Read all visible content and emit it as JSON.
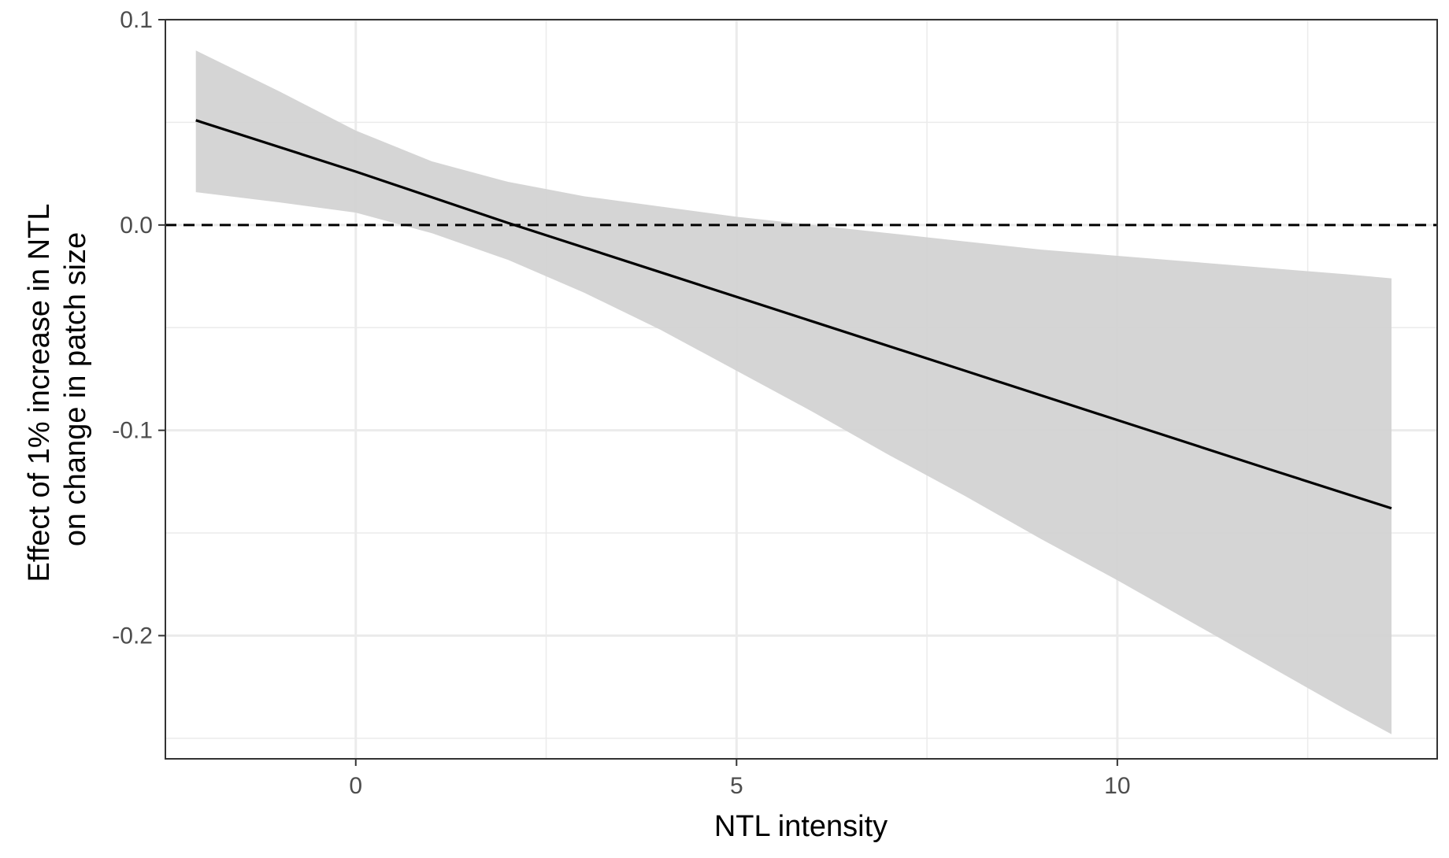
{
  "chart_data": {
    "type": "line",
    "title": "",
    "xlabel": "NTL intensity",
    "ylabel": [
      "Effect of 1% increase in NTL",
      "on change in patch size"
    ],
    "xlim": [
      -2.5,
      14.2
    ],
    "ylim": [
      -0.26,
      0.1
    ],
    "x_ticks": [
      0,
      5,
      10
    ],
    "x_tick_labels": [
      "0",
      "5",
      "10"
    ],
    "y_ticks": [
      0.1,
      0.0,
      -0.1,
      -0.2
    ],
    "y_tick_labels": [
      "0.1",
      "0.0",
      "-0.1",
      "-0.2"
    ],
    "grid": true,
    "reference_line": {
      "y": 0.0,
      "style": "dashed",
      "color": "#000000"
    },
    "series": [
      {
        "x": [
          -2.1,
          0,
          2,
          4,
          6,
          8,
          10,
          12,
          13.6
        ],
        "values": [
          0.051,
          0.026,
          0.001,
          -0.023,
          -0.047,
          -0.071,
          -0.095,
          -0.119,
          -0.138
        ],
        "color": "#000000"
      }
    ],
    "confidence_band": {
      "color": "#d3d3d3",
      "x": [
        -2.1,
        -1,
        0,
        1,
        2,
        3,
        4,
        5,
        6,
        7,
        8,
        9,
        10,
        11,
        12,
        13,
        13.6
      ],
      "upper": [
        0.085,
        0.065,
        0.046,
        0.031,
        0.021,
        0.014,
        0.009,
        0.004,
        0.0,
        -0.004,
        -0.008,
        -0.012,
        -0.015,
        -0.018,
        -0.021,
        -0.024,
        -0.026
      ],
      "lower": [
        0.016,
        0.011,
        0.006,
        -0.004,
        -0.017,
        -0.033,
        -0.051,
        -0.071,
        -0.091,
        -0.112,
        -0.132,
        -0.153,
        -0.173,
        -0.194,
        -0.215,
        -0.236,
        -0.248
      ]
    }
  }
}
